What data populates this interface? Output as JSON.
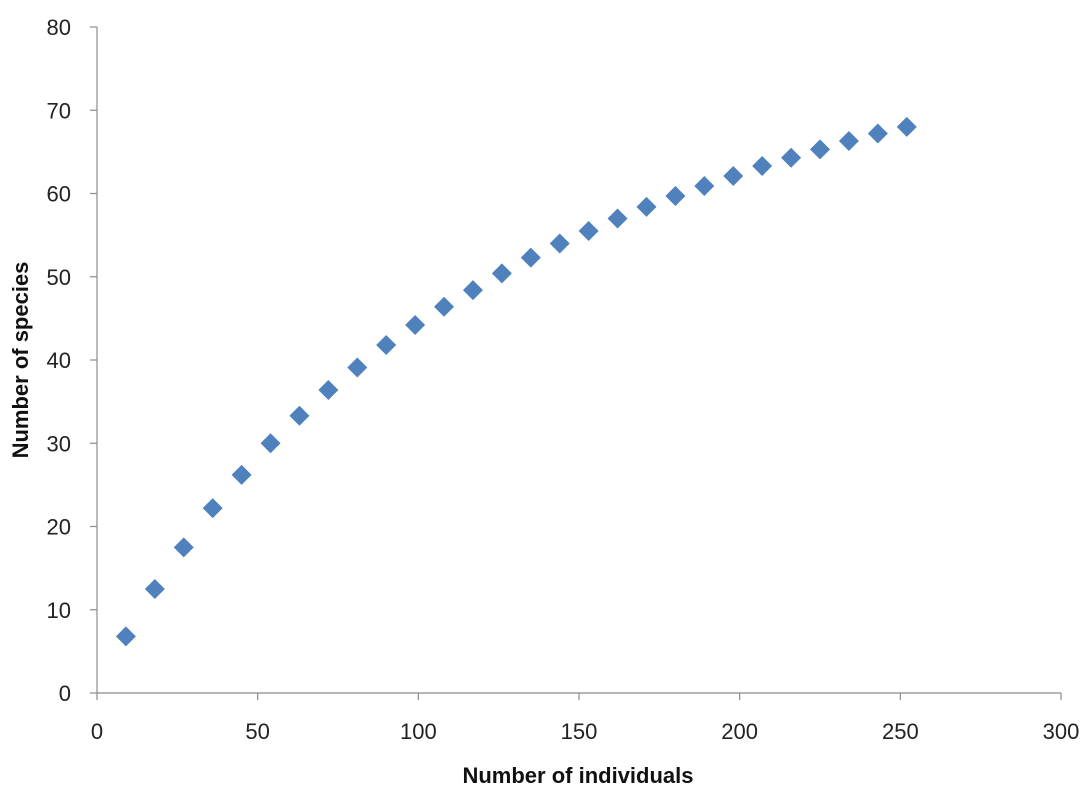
{
  "chart_data": {
    "type": "scatter",
    "title": "",
    "xlabel": "Number of individuals",
    "ylabel": "Number of species",
    "xlim": [
      0,
      300
    ],
    "ylim": [
      0,
      80
    ],
    "xticks": [
      0,
      50,
      100,
      150,
      200,
      250,
      300
    ],
    "yticks": [
      0,
      10,
      20,
      30,
      40,
      50,
      60,
      70,
      80
    ],
    "grid": false,
    "legend": "none",
    "marker": "diamond",
    "marker_color": "#4F81BD",
    "series": [
      {
        "x": [
          9,
          18,
          27,
          36,
          45,
          54,
          63,
          72,
          81,
          90,
          99,
          108,
          117,
          126,
          135,
          144,
          153,
          162,
          171,
          180,
          189,
          198,
          207,
          216,
          225,
          234,
          243,
          252
        ],
        "y": [
          6.8,
          12.5,
          17.5,
          22.2,
          26.2,
          30.0,
          33.3,
          36.4,
          39.1,
          41.8,
          44.2,
          46.4,
          48.4,
          50.4,
          52.3,
          54.0,
          55.5,
          57.0,
          58.4,
          59.7,
          60.9,
          62.1,
          63.3,
          64.3,
          65.3,
          66.3,
          67.2,
          68.0
        ]
      }
    ]
  }
}
